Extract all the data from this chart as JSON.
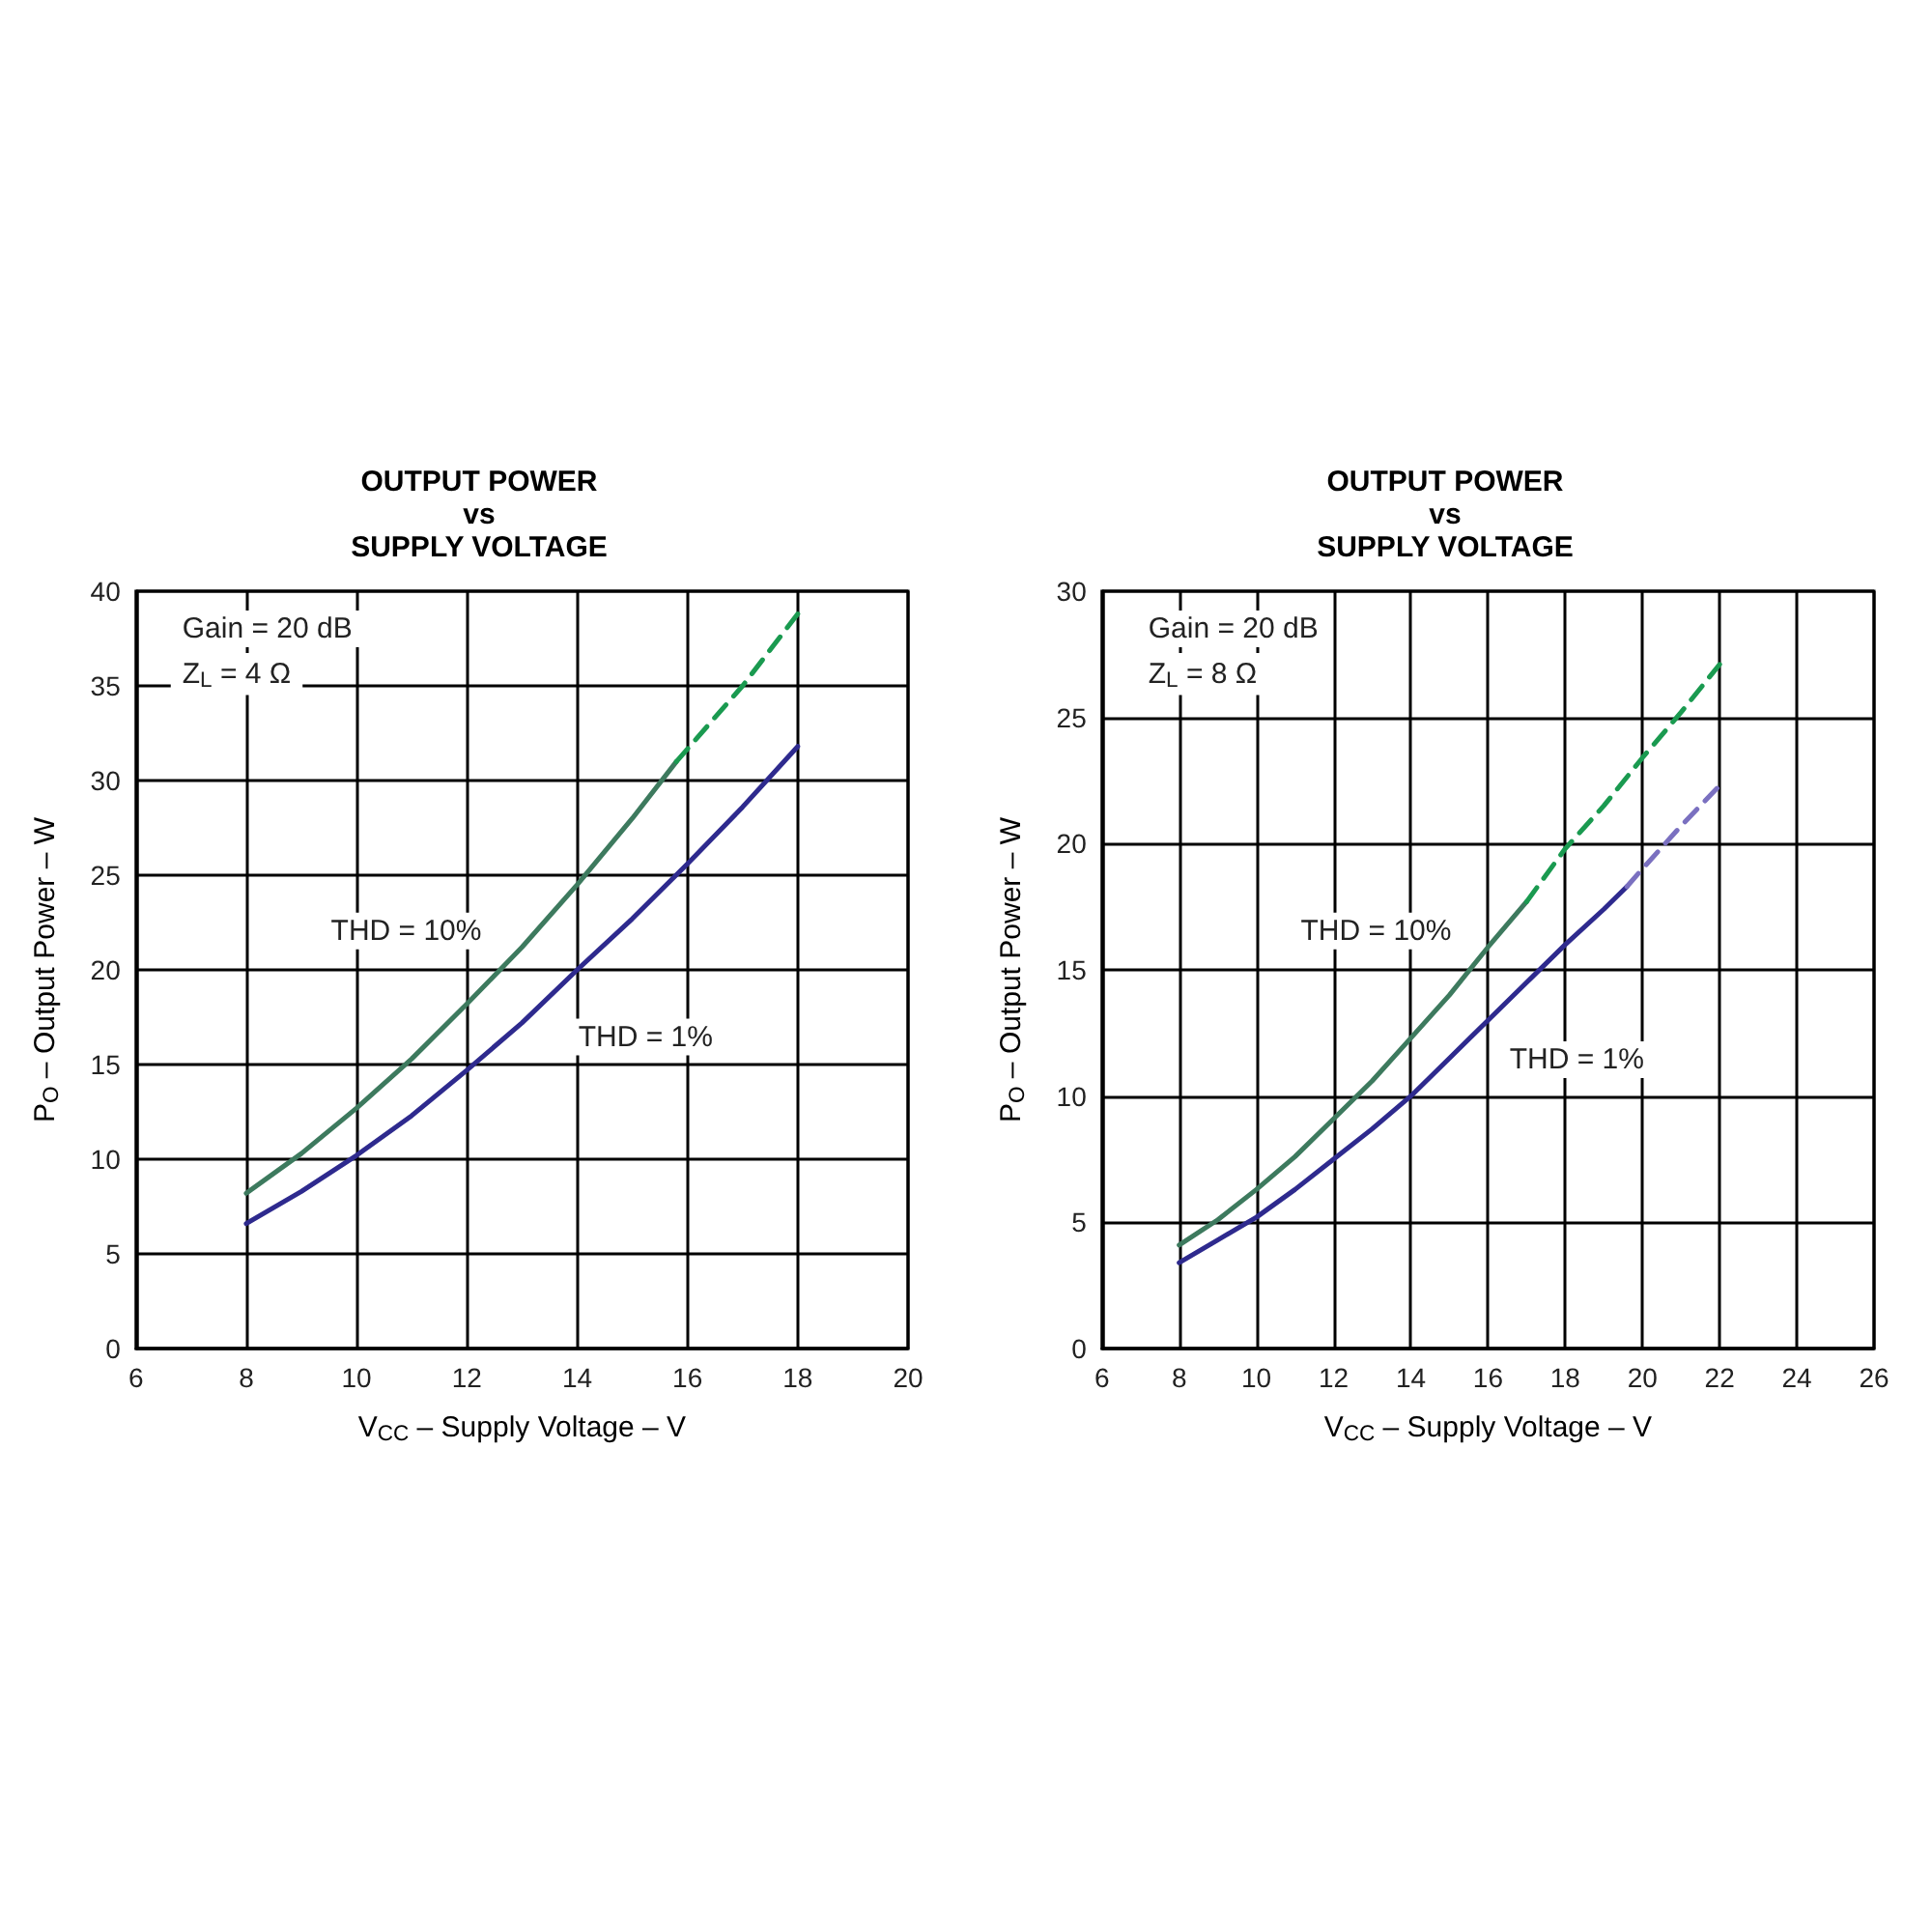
{
  "chart_data": [
    {
      "type": "line",
      "title": "OUTPUT POWER\nvs\nSUPPLY VOLTAGE",
      "xlabel": "V$_{CC}$ – Supply Voltage – V",
      "ylabel": "P$_{O}$ – Output Power – W",
      "xlim": [
        6,
        20
      ],
      "xticks": [
        6,
        8,
        10,
        12,
        14,
        16,
        18,
        20
      ],
      "ylim": [
        0,
        40
      ],
      "yticks": [
        0,
        5,
        10,
        15,
        20,
        25,
        30,
        35,
        40
      ],
      "grid": true,
      "marker": "none",
      "annotations": [
        "Gain = 20 dB",
        "Z$_{L}$ = 4 Ω",
        "THD = 10%",
        "THD = 1%"
      ],
      "series": [
        {
          "color": "#3d7a5e",
          "line_style": "solid",
          "x": [
            8,
            9,
            10,
            11,
            12,
            13,
            14,
            15,
            15.8
          ],
          "values": [
            8.2,
            10.3,
            12.7,
            15.3,
            18.2,
            21.2,
            24.5,
            28,
            31
          ]
        },
        {
          "color": "#1a9a50",
          "line_style": "dashed",
          "x": [
            15.8,
            17,
            18
          ],
          "values": [
            31,
            35,
            38.8
          ]
        },
        {
          "color": "#2e2a8e",
          "line_style": "solid",
          "x": [
            8,
            9,
            10,
            11,
            12,
            13,
            14,
            15,
            16,
            17,
            18
          ],
          "values": [
            6.6,
            8.3,
            10.2,
            12.3,
            14.7,
            17.2,
            20,
            22.7,
            25.6,
            28.6,
            31.8
          ]
        }
      ]
    },
    {
      "type": "line",
      "title": "OUTPUT POWER\nvs\nSUPPLY VOLTAGE",
      "xlabel": "V$_{CC}$ – Supply Voltage – V",
      "ylabel": "P$_{O}$ – Output Power – W",
      "xlim": [
        6,
        26
      ],
      "xticks": [
        6,
        8,
        10,
        12,
        14,
        16,
        18,
        20,
        22,
        24,
        26
      ],
      "ylim": [
        0,
        30
      ],
      "yticks": [
        0,
        5,
        10,
        15,
        20,
        25,
        30
      ],
      "grid": true,
      "marker": "none",
      "annotations": [
        "Gain = 20 dB",
        "Z$_{L}$ = 8 Ω",
        "THD = 10%",
        "THD = 1%"
      ],
      "series": [
        {
          "color": "#3d7a5e",
          "line_style": "solid",
          "x": [
            8,
            9,
            10,
            11,
            12,
            13,
            14,
            15,
            16,
            17
          ],
          "values": [
            4.1,
            5.1,
            6.3,
            7.6,
            9.1,
            10.6,
            12.3,
            14,
            15.9,
            17.7
          ]
        },
        {
          "color": "#1a9a50",
          "line_style": "dashed",
          "x": [
            17,
            18,
            19,
            20,
            21,
            22
          ],
          "values": [
            17.7,
            19.8,
            21.5,
            23.4,
            25.2,
            27.1
          ]
        },
        {
          "color": "#2e2a8e",
          "line_style": "solid",
          "x": [
            8,
            9,
            10,
            11,
            12,
            13,
            14,
            15,
            16,
            17,
            18,
            19,
            19.6
          ],
          "values": [
            3.4,
            4.3,
            5.2,
            6.3,
            7.5,
            8.7,
            10,
            11.5,
            13,
            14.5,
            16,
            17.4,
            18.3
          ]
        },
        {
          "color": "#7a70c0",
          "line_style": "dashed",
          "x": [
            19.6,
            20,
            21,
            22
          ],
          "values": [
            18.3,
            19,
            20.7,
            22.3
          ]
        }
      ]
    }
  ]
}
